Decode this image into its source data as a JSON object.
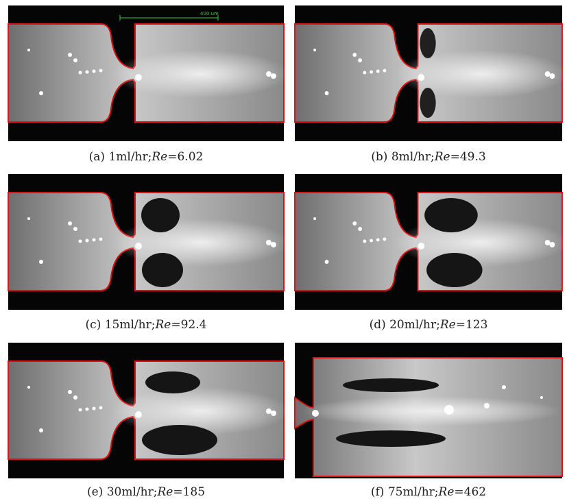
{
  "scale_bar": "400 um",
  "panels": [
    {
      "prefix": "(a)  1ml/hr;",
      "re": "Re",
      "value": "=6.02"
    },
    {
      "prefix": "(b)  8ml/hr;",
      "re": "Re",
      "value": "=49.3"
    },
    {
      "prefix": "(c)  15ml/hr;",
      "re": "Re",
      "value": "=92.4"
    },
    {
      "prefix": "(d)  20ml/hr;",
      "re": "Re",
      "value": "=123"
    },
    {
      "prefix": "(e)  30ml/hr;",
      "re": "Re",
      "value": "=185"
    },
    {
      "prefix": "(f)  75ml/hr;",
      "re": "Re",
      "value": "=462"
    }
  ]
}
